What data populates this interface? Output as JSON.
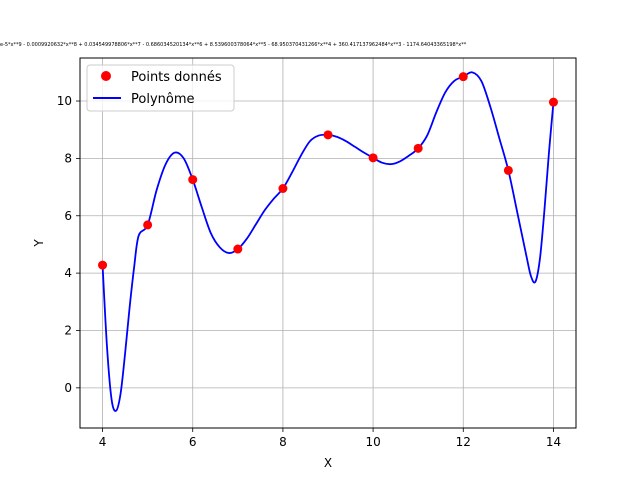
{
  "chart_data": {
    "type": "scatter",
    "title": "e-5*x**9 - 0.0009920632*x**8 + 0.034549978806*x**7 - 0.686034520134*x**6 + 8.539600378064*x**5 - 68.950370431266*x**4 + 360.417137962484*x**3 - 1174.64043365198*x**",
    "xlabel": "X",
    "ylabel": "Y",
    "xlim": [
      3.5,
      14.5
    ],
    "ylim": [
      -1.4,
      11.5
    ],
    "xticks": [
      4,
      6,
      8,
      10,
      12,
      14
    ],
    "yticks": [
      0,
      2,
      4,
      6,
      8,
      10
    ],
    "grid": true,
    "legend_position": "top-left",
    "series": [
      {
        "name": "Points donnés",
        "kind": "scatter",
        "color": "#ff0000",
        "x": [
          4,
          5,
          6,
          7,
          8,
          9,
          10,
          11,
          12,
          13,
          14
        ],
        "y": [
          4.28,
          5.68,
          7.26,
          4.84,
          6.95,
          8.82,
          8.02,
          8.35,
          10.85,
          7.58,
          9.96
        ]
      },
      {
        "name": "Polynôme",
        "kind": "line",
        "color": "#0000ff",
        "x": [
          4.0,
          4.1,
          4.2,
          4.3,
          4.4,
          4.5,
          4.6,
          4.7,
          4.8,
          5.0,
          5.2,
          5.4,
          5.6,
          5.8,
          6.0,
          6.2,
          6.4,
          6.6,
          6.8,
          7.0,
          7.2,
          7.4,
          7.6,
          7.8,
          8.0,
          8.2,
          8.4,
          8.6,
          8.8,
          9.0,
          9.2,
          9.4,
          9.6,
          9.8,
          10.0,
          10.2,
          10.4,
          10.6,
          10.8,
          11.0,
          11.2,
          11.4,
          11.6,
          11.8,
          12.0,
          12.2,
          12.4,
          12.6,
          12.8,
          13.0,
          13.2,
          13.4,
          13.5,
          13.6,
          13.7,
          13.8,
          13.9,
          14.0
        ],
        "y": [
          4.28,
          1.4,
          -0.4,
          -0.8,
          -0.2,
          1.2,
          2.8,
          4.2,
          5.3,
          5.68,
          6.9,
          7.8,
          8.2,
          8.0,
          7.26,
          6.3,
          5.4,
          4.9,
          4.7,
          4.84,
          5.2,
          5.7,
          6.2,
          6.6,
          6.95,
          7.5,
          8.1,
          8.6,
          8.8,
          8.82,
          8.75,
          8.6,
          8.4,
          8.2,
          8.02,
          7.85,
          7.8,
          7.9,
          8.1,
          8.35,
          8.8,
          9.6,
          10.3,
          10.7,
          10.85,
          11.0,
          10.7,
          9.8,
          8.7,
          7.58,
          6.1,
          4.6,
          3.9,
          3.7,
          4.5,
          6.2,
          8.2,
          9.96
        ]
      }
    ]
  }
}
